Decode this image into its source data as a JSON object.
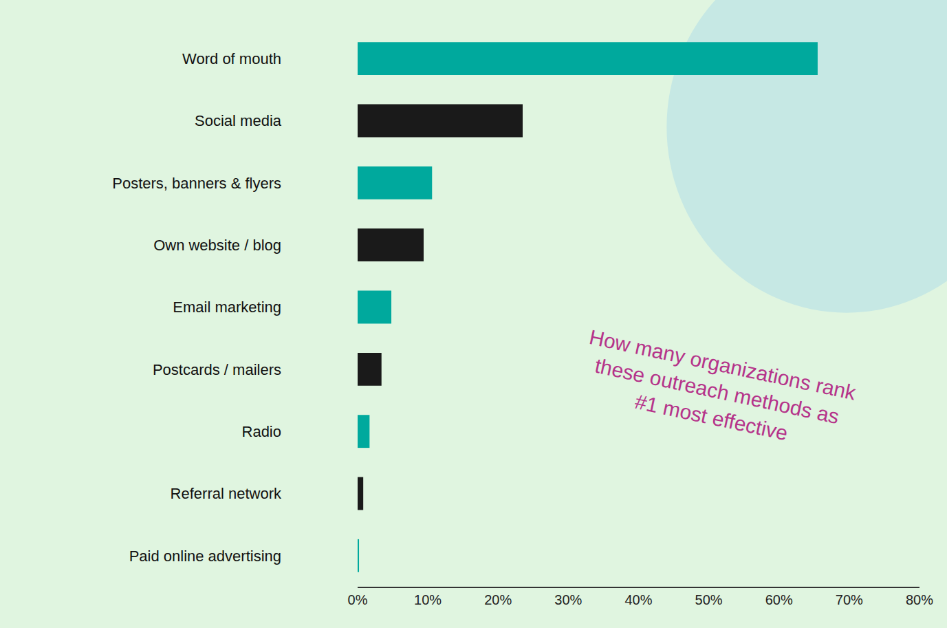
{
  "chart_data": {
    "type": "bar",
    "orientation": "horizontal",
    "title": "How many organizations rank these outreach methods as #1 most effective",
    "categories": [
      "Word of mouth",
      "Social media",
      "Posters, banners & flyers",
      "Own website / blog",
      "Email marketing",
      "Postcards / mailers",
      "Radio",
      "Referral network",
      "Paid online advertising"
    ],
    "values": [
      65.5,
      23.5,
      10.6,
      9.4,
      4.8,
      3.4,
      1.7,
      0.8,
      0.2
    ],
    "colors": [
      "#00a99d",
      "#1a1a1a",
      "#00a99d",
      "#1a1a1a",
      "#00a99d",
      "#1a1a1a",
      "#00a99d",
      "#1a1a1a",
      "#00a99d"
    ],
    "xlim": [
      0,
      80
    ],
    "xticks": [
      {
        "value": 0,
        "label": "0%"
      },
      {
        "value": 10,
        "label": "10%"
      },
      {
        "value": 20,
        "label": "20%"
      },
      {
        "value": 30,
        "label": "30%"
      },
      {
        "value": 40,
        "label": "40%"
      },
      {
        "value": 50,
        "label": "50%"
      },
      {
        "value": 60,
        "label": "60%"
      },
      {
        "value": 70,
        "label": "70%"
      },
      {
        "value": 80,
        "label": "80%"
      }
    ],
    "grid": false
  }
}
